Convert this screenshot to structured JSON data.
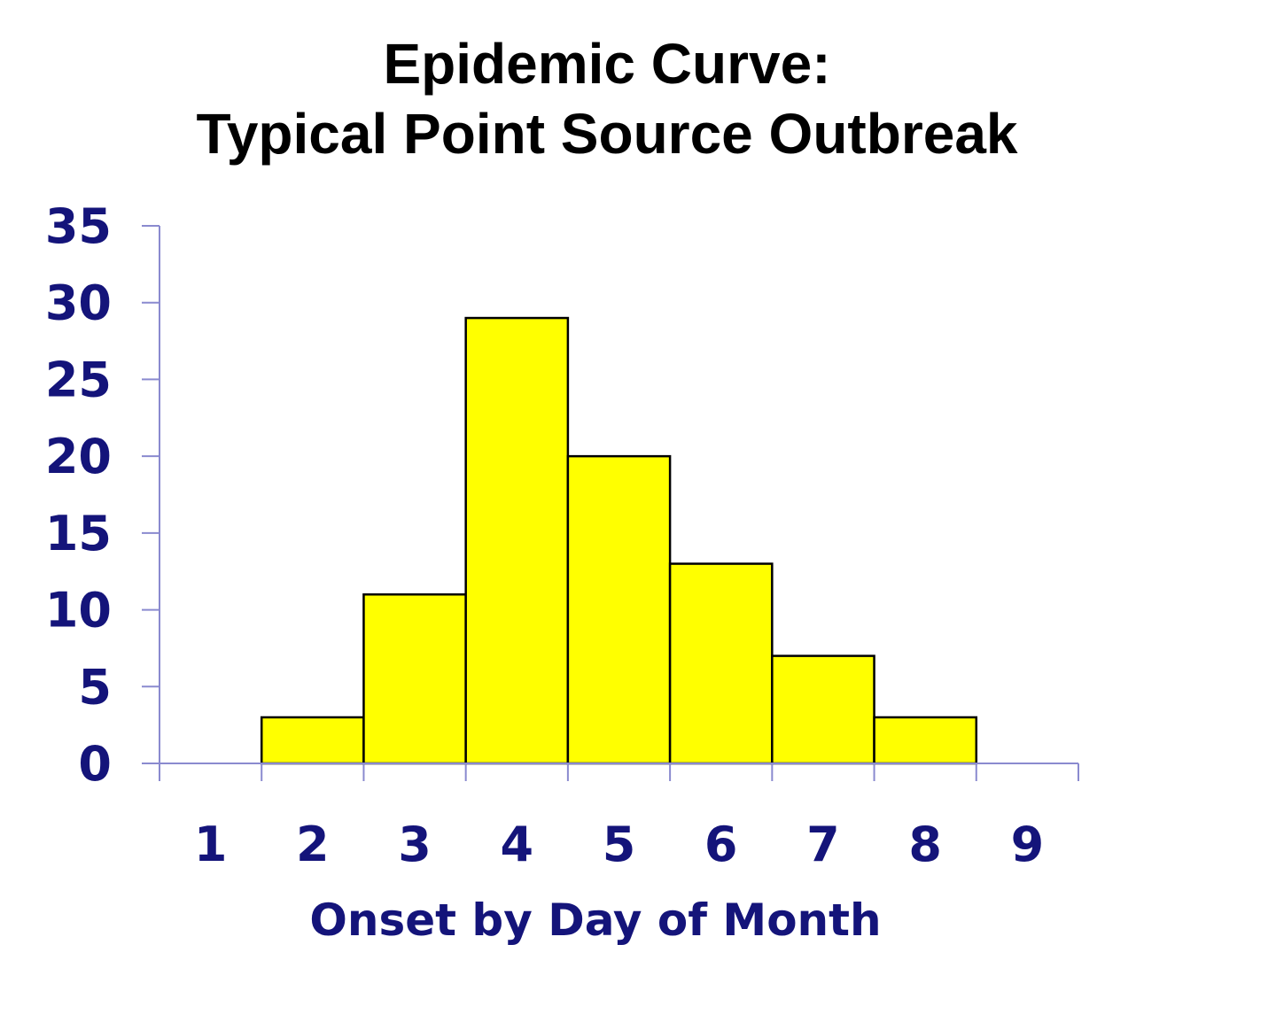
{
  "chart_data": {
    "type": "bar",
    "title_line1": "Epidemic Curve:",
    "title_line2": "Typical Point Source Outbreak",
    "xlabel": "Onset by Day of Month",
    "ylabel": "",
    "categories": [
      "1",
      "2",
      "3",
      "4",
      "5",
      "6",
      "7",
      "8",
      "9"
    ],
    "values": [
      0,
      3,
      11,
      29,
      20,
      13,
      7,
      3,
      0
    ],
    "ylim": [
      0,
      35
    ],
    "yticks": [
      0,
      5,
      10,
      15,
      20,
      25,
      30,
      35
    ],
    "grid": false,
    "legend": "none",
    "colors": {
      "bar_fill": "#FFFF00",
      "bar_stroke": "#000000",
      "axis": "#8A8ACF",
      "tick_label": "#14147A",
      "title": "#000000"
    }
  }
}
